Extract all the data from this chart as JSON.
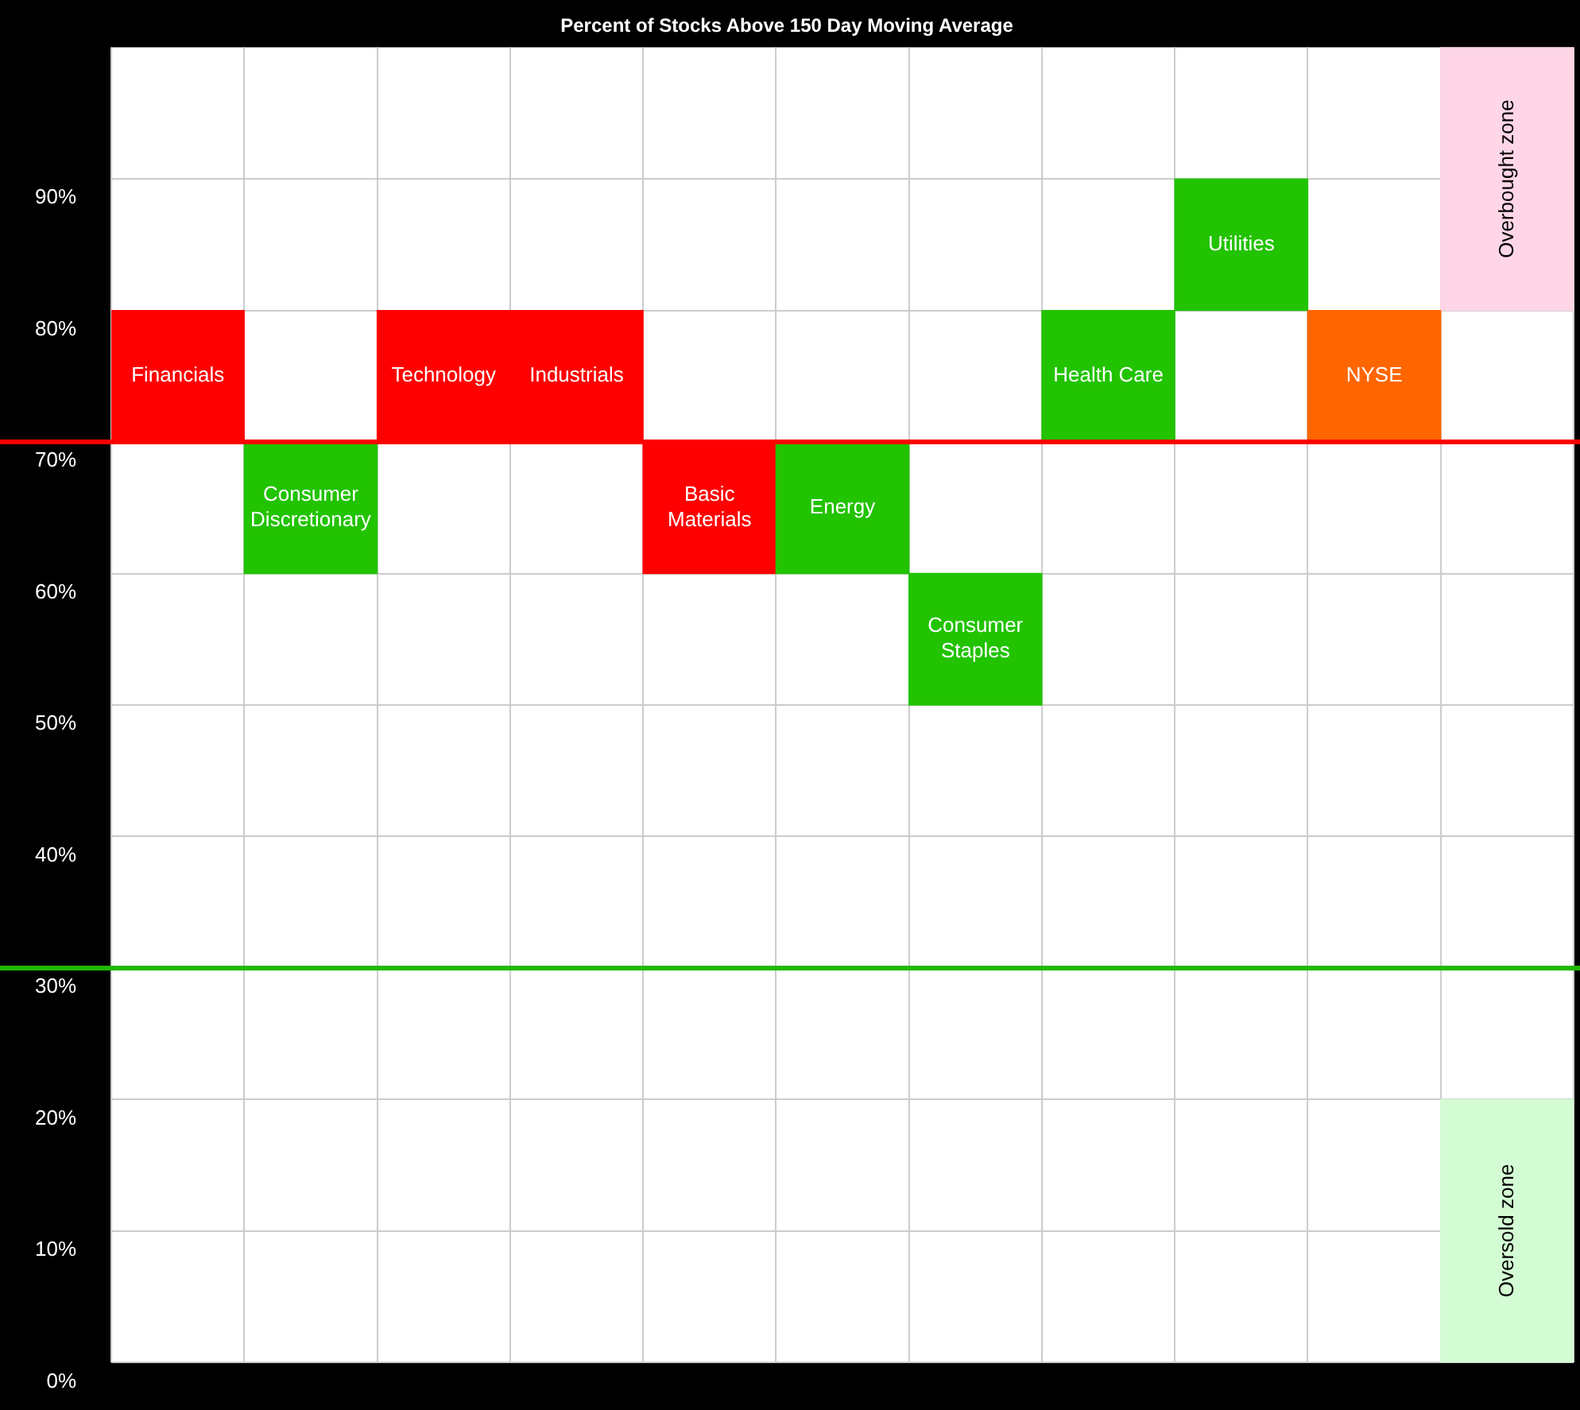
{
  "chart_data": {
    "type": "bar",
    "title": "Percent of Stocks Above 150 Day Moving Average",
    "categories": [
      null,
      null,
      null,
      null,
      null,
      null,
      null,
      null,
      null,
      null,
      null
    ],
    "series": [
      {
        "colors": [
          "#ff0000",
          "#22c300",
          "#ff0000",
          "#ff0000",
          "#ff0000",
          "#22c300",
          "#22c300",
          "#22c300",
          "#22c300",
          "#ff6600",
          null
        ],
        "base": [
          70,
          60,
          70,
          70,
          60,
          60,
          50,
          70,
          80,
          70,
          null
        ],
        "values": [
          10,
          10,
          10,
          10,
          10,
          10,
          10,
          10,
          10,
          10,
          null
        ],
        "value_labels": [
          "Financials",
          "Consumer Discretionary",
          "Technology",
          "Industrials",
          "Basic Materials",
          "Energy",
          "Consumer Staples",
          "Health Care",
          "Utilities",
          "NYSE",
          null
        ]
      },
      {
        "color": "#ffd6e6",
        "base": [
          null,
          null,
          null,
          null,
          null,
          null,
          null,
          null,
          null,
          null,
          80
        ],
        "values": [
          null,
          null,
          null,
          null,
          null,
          null,
          null,
          null,
          null,
          null,
          20
        ],
        "value_labels": [
          null,
          null,
          null,
          null,
          null,
          null,
          null,
          null,
          null,
          null,
          "Overbought zone"
        ]
      },
      {
        "color": "#d4fcd4",
        "base": [
          null,
          null,
          null,
          null,
          null,
          null,
          null,
          null,
          null,
          null,
          0
        ],
        "values": [
          null,
          null,
          null,
          null,
          null,
          null,
          null,
          null,
          null,
          null,
          20
        ],
        "value_labels": [
          null,
          null,
          null,
          null,
          null,
          null,
          null,
          null,
          null,
          null,
          "Oversold zone"
        ]
      }
    ],
    "ylim": [
      0,
      100
    ],
    "yticks": [
      {
        "value": 0,
        "label": "0%"
      },
      {
        "value": 10,
        "label": "10%"
      },
      {
        "value": 20,
        "label": "20%"
      },
      {
        "value": 30,
        "label": "30%"
      },
      {
        "value": 40,
        "label": "40%"
      },
      {
        "value": 50,
        "label": "50%"
      },
      {
        "value": 60,
        "label": "60%"
      },
      {
        "value": 70,
        "label": "70%"
      },
      {
        "value": 80,
        "label": "80%"
      },
      {
        "value": 90,
        "label": "90%"
      }
    ],
    "ref_lines": [
      {
        "axis": "y",
        "value": 70,
        "color": "#ff0000"
      },
      {
        "axis": "y",
        "value": 30,
        "color": "#22b800"
      }
    ],
    "grid": true,
    "legend": false,
    "tick_labels": "y"
  }
}
